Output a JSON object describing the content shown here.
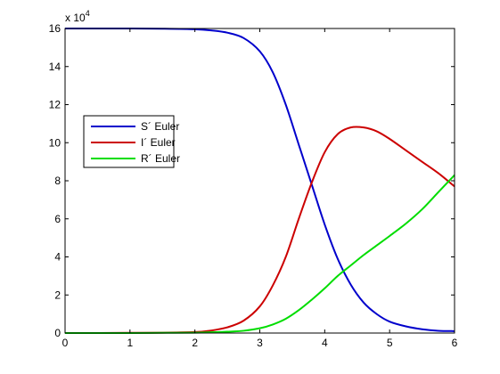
{
  "chart_data": {
    "type": "line",
    "title": "",
    "xlabel": "",
    "ylabel": "",
    "xlim": [
      0,
      6
    ],
    "ylim": [
      0,
      16
    ],
    "y_multiplier_label": "x 10",
    "y_multiplier_exponent": "4",
    "x_ticks": [
      "0",
      "1",
      "2",
      "3",
      "4",
      "5",
      "6"
    ],
    "y_ticks": [
      "0",
      "2",
      "4",
      "6",
      "8",
      "10",
      "12",
      "14",
      "16"
    ],
    "grid": false,
    "legend_position": "left",
    "x": [
      0,
      0.5,
      1,
      1.5,
      2,
      2.25,
      2.5,
      2.75,
      3,
      3.2,
      3.4,
      3.6,
      3.8,
      4,
      4.2,
      4.4,
      4.6,
      4.8,
      5,
      5.25,
      5.5,
      5.75,
      6
    ],
    "series": [
      {
        "name": "S´ Euler",
        "color": "#0000cc",
        "values": [
          16,
          16,
          16,
          15.99,
          15.96,
          15.9,
          15.78,
          15.5,
          14.8,
          13.7,
          12,
          9.9,
          7.8,
          5.7,
          3.9,
          2.55,
          1.6,
          1.0,
          0.6,
          0.35,
          0.2,
          0.12,
          0.1
        ]
      },
      {
        "name": "I´ Euler",
        "color": "#cc0000",
        "values": [
          0,
          0,
          0.01,
          0.02,
          0.05,
          0.13,
          0.3,
          0.65,
          1.4,
          2.5,
          4.0,
          6.0,
          7.9,
          9.5,
          10.45,
          10.8,
          10.8,
          10.6,
          10.2,
          9.6,
          9.0,
          8.4,
          7.7
        ]
      },
      {
        "name": "R´ Euler",
        "color": "#00dd00",
        "values": [
          0,
          0,
          0,
          0.01,
          0.02,
          0.04,
          0.07,
          0.12,
          0.25,
          0.45,
          0.75,
          1.2,
          1.75,
          2.35,
          3.0,
          3.55,
          4.1,
          4.6,
          5.1,
          5.75,
          6.5,
          7.4,
          8.3
        ]
      }
    ]
  }
}
